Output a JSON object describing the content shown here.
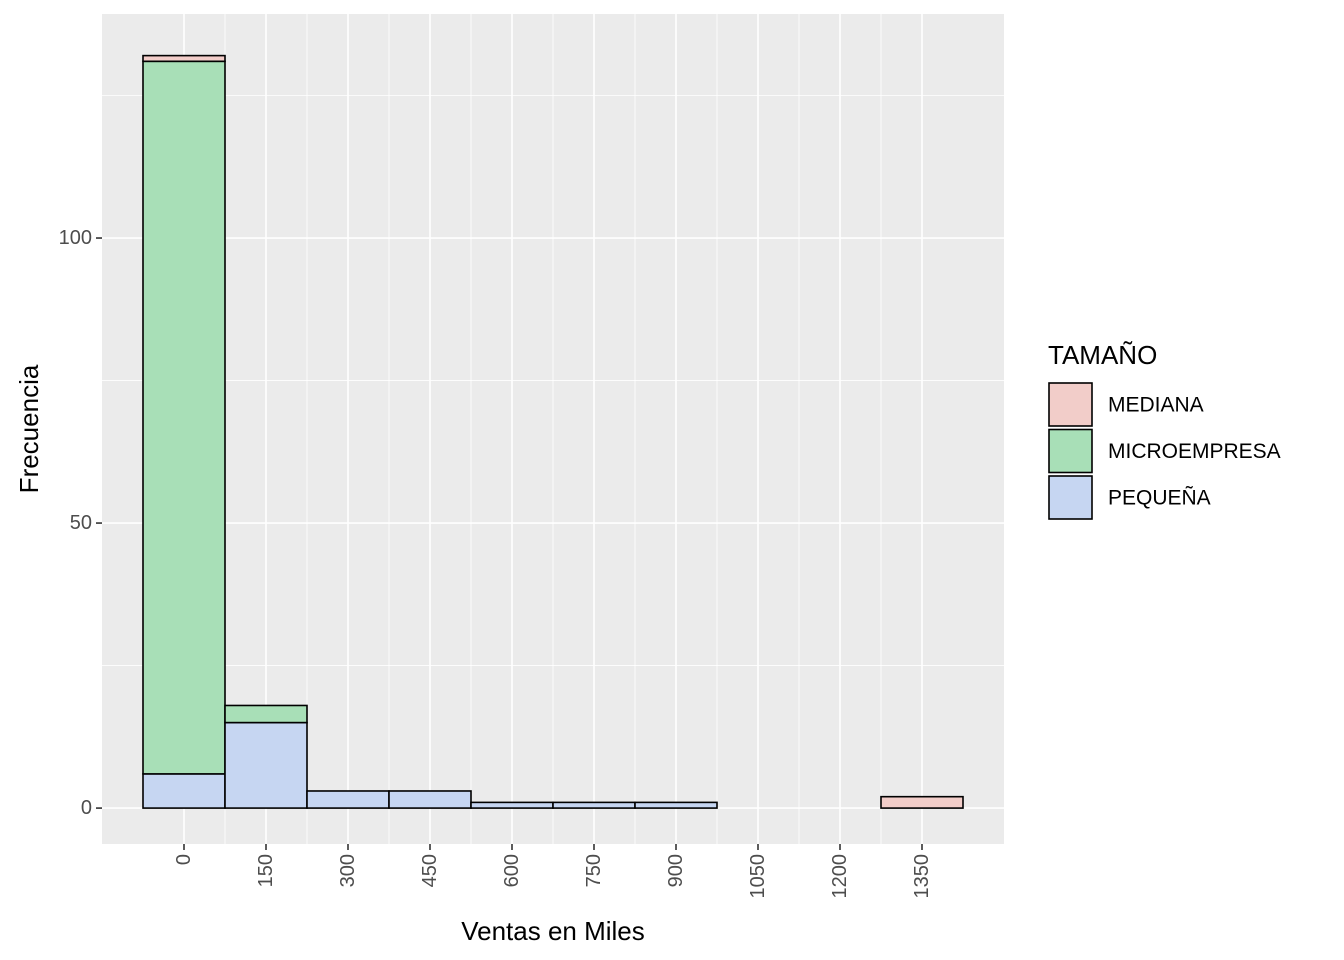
{
  "chart_data": {
    "type": "bar",
    "stacked": true,
    "xlabel": "Ventas en Miles",
    "ylabel": "Frecuencia",
    "x_ticks": [
      "0",
      "150",
      "300",
      "450",
      "600",
      "750",
      "900",
      "1050",
      "1200",
      "1350"
    ],
    "x_tick_values": [
      0,
      150,
      300,
      450,
      600,
      750,
      900,
      1050,
      1200,
      1350
    ],
    "xlim": [
      -150,
      1500
    ],
    "y_ticks": [
      "0",
      "50",
      "100"
    ],
    "y_tick_values": [
      0,
      50,
      100
    ],
    "ylim": [
      -6.3,
      139.3
    ],
    "bin_width": 150,
    "bin_centers": [
      0,
      150,
      300,
      450,
      600,
      750,
      900,
      1050,
      1200,
      1350
    ],
    "series": [
      {
        "name": "PEQUEÑA",
        "color": "#c6d6f2",
        "values": [
          6,
          15,
          3,
          3,
          1,
          1,
          1,
          0,
          0,
          0
        ]
      },
      {
        "name": "MICROEMPRESA",
        "color": "#a8dfb7",
        "values": [
          125,
          3,
          0,
          0,
          0,
          0,
          0,
          0,
          0,
          0
        ]
      },
      {
        "name": "MEDIANA",
        "color": "#f2cdc9",
        "values": [
          1,
          0,
          0,
          0,
          0,
          0,
          0,
          0,
          0,
          2
        ]
      }
    ],
    "legend": {
      "title": "TAMAÑO",
      "position": "right",
      "items": [
        {
          "label": "MEDIANA",
          "color": "#f2cdc9"
        },
        {
          "label": "MICROEMPRESA",
          "color": "#a8dfb7"
        },
        {
          "label": "PEQUEÑA",
          "color": "#c6d6f2"
        }
      ]
    },
    "grid": true,
    "panel_background": "#ebebeb",
    "bar_outline": "#000000"
  }
}
